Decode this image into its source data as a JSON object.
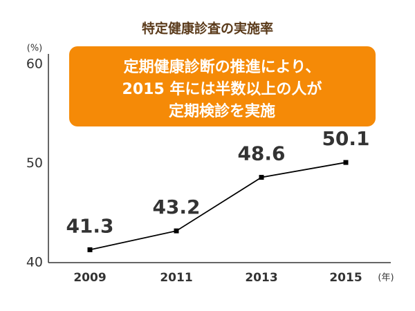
{
  "chart_data": {
    "type": "line",
    "title": "特定健康診査の実施率",
    "y_label": "(%)",
    "x_label": "(年)",
    "annotation": [
      "定期健康診断の推進により、",
      "2015 年には半数以上の人が",
      "定期検診を実施"
    ],
    "categories": [
      "2009",
      "2011",
      "2013",
      "2015"
    ],
    "series": [
      {
        "color": "#000000",
        "values": [
          41.3,
          43.2,
          48.6,
          50.1
        ]
      }
    ],
    "ylim": [
      40,
      60
    ],
    "yticks": [
      40,
      50,
      60
    ],
    "grid": false
  }
}
